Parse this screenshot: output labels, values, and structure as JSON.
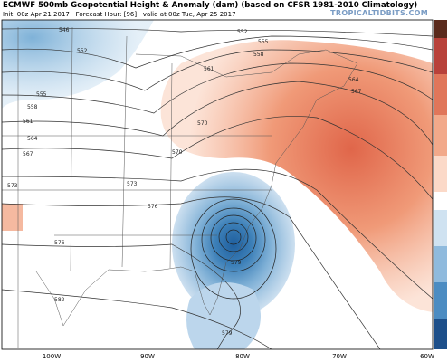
{
  "header": {
    "title": "ECMWF 500mb Geopotential Height & Anomaly (dam) (based on CFSR 1981-2010 Climatology)",
    "init": "Init: 00z Apr 21 2017",
    "forecast_hour": "Forecast Hour: [96]",
    "valid": "valid at 00z Tue, Apr 25 2017",
    "watermark": "TROPICALTIDBITS.COM"
  },
  "longitudes": [
    "100W",
    "90W",
    "80W",
    "70W",
    "60W"
  ],
  "contours": [
    "546",
    "552",
    "555",
    "558",
    "561",
    "564",
    "567",
    "570",
    "573",
    "576",
    "579",
    "582",
    "552",
    "555",
    "558",
    "561",
    "564",
    "567",
    "570",
    "573",
    "576",
    "579"
  ]
}
